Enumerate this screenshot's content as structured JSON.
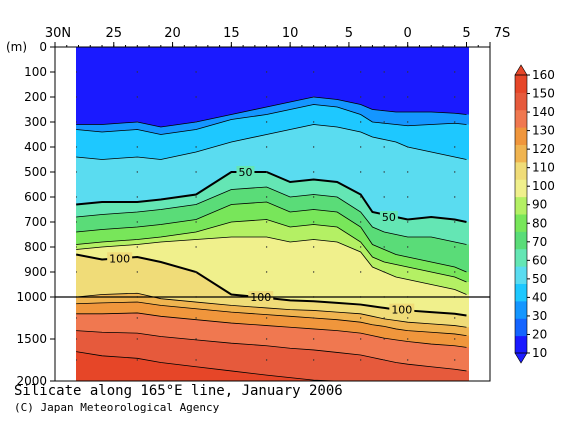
{
  "chart_data": {
    "type": "heatmap",
    "title": "Silicate along 165°E line, January 2006",
    "credit": "(C) Japan Meteorological Agency",
    "x_axis": {
      "ticks": [
        "30N",
        "25",
        "20",
        "15",
        "10",
        "5",
        "0",
        "5",
        "7S"
      ],
      "range_lat": [
        30,
        -7
      ]
    },
    "y_axis": {
      "unit": "(m)",
      "upper_ticks": [
        "0",
        "100",
        "200",
        "300",
        "400",
        "500",
        "600",
        "700",
        "800",
        "900",
        "1000"
      ],
      "lower_ticks": [
        "1500",
        "2000"
      ],
      "upper_range": [
        0,
        1000
      ],
      "lower_range": [
        1000,
        2000
      ]
    },
    "colorbar": {
      "levels": [
        10,
        20,
        30,
        40,
        50,
        60,
        70,
        80,
        90,
        100,
        110,
        120,
        130,
        140,
        150,
        160
      ],
      "labels": [
        "160",
        "150",
        "140",
        "130",
        "120",
        "110",
        "100",
        "90",
        "80",
        "70",
        "60",
        "50",
        "40",
        "30",
        "20",
        "10"
      ],
      "colors": [
        "#1a1aff",
        "#1464ff",
        "#1496ff",
        "#1ec8ff",
        "#5adcf0",
        "#64e6b4",
        "#5adc78",
        "#78e65a",
        "#b4f064",
        "#f0f08c",
        "#f0dc78",
        "#f0b450",
        "#f0963c",
        "#f07850",
        "#e65a3c",
        "#e64628"
      ]
    },
    "sample_latitudes": [
      28.2,
      26,
      23,
      21,
      18,
      15,
      12,
      10,
      8,
      6,
      4,
      3,
      2,
      1,
      0,
      -2,
      -4,
      -5
    ],
    "contours": [
      {
        "value": 20,
        "depths": [
          310,
          310,
          300,
          320,
          300,
          270,
          240,
          220,
          200,
          210,
          230,
          250,
          255,
          260,
          260,
          260,
          265,
          270
        ]
      },
      {
        "value": 30,
        "depths": [
          330,
          340,
          330,
          350,
          330,
          290,
          270,
          250,
          230,
          240,
          270,
          300,
          305,
          310,
          315,
          310,
          305,
          310
        ]
      },
      {
        "value": 40,
        "depths": [
          440,
          450,
          440,
          450,
          420,
          380,
          350,
          330,
          310,
          320,
          340,
          360,
          370,
          380,
          400,
          420,
          440,
          450
        ]
      },
      {
        "value": 50,
        "depths": [
          630,
          620,
          620,
          610,
          590,
          500,
          500,
          540,
          530,
          540,
          590,
          660,
          670,
          680,
          690,
          680,
          690,
          700
        ]
      },
      {
        "value": 60,
        "depths": [
          680,
          670,
          660,
          650,
          630,
          570,
          560,
          600,
          590,
          600,
          660,
          720,
          740,
          750,
          760,
          760,
          780,
          790
        ]
      },
      {
        "value": 70,
        "depths": [
          740,
          730,
          720,
          710,
          690,
          630,
          620,
          660,
          650,
          660,
          720,
          790,
          810,
          830,
          840,
          860,
          880,
          900
        ]
      },
      {
        "value": 80,
        "depths": [
          790,
          780,
          770,
          760,
          740,
          700,
          690,
          720,
          710,
          720,
          780,
          840,
          860,
          870,
          880,
          900,
          920,
          940
        ]
      },
      {
        "value": 90,
        "depths": [
          810,
          800,
          790,
          780,
          770,
          760,
          760,
          780,
          770,
          780,
          820,
          880,
          900,
          920,
          930,
          950,
          970,
          990
        ]
      },
      {
        "value": 100,
        "depths": [
          830,
          850,
          840,
          860,
          900,
          990,
          1010,
          1040,
          1050,
          1070,
          1090,
          1110,
          1130,
          1150,
          1160,
          1180,
          1200,
          1220
        ]
      },
      {
        "value": 110,
        "depths": [
          1000,
          990,
          985,
          1020,
          1060,
          1100,
          1130,
          1150,
          1160,
          1180,
          1200,
          1230,
          1260,
          1280,
          1300,
          1320,
          1340,
          1360
        ]
      },
      {
        "value": 120,
        "depths": [
          1080,
          1070,
          1060,
          1100,
          1140,
          1180,
          1210,
          1230,
          1250,
          1270,
          1300,
          1330,
          1350,
          1380,
          1400,
          1420,
          1440,
          1460
        ]
      },
      {
        "value": 130,
        "depths": [
          1200,
          1200,
          1190,
          1230,
          1270,
          1310,
          1340,
          1360,
          1380,
          1400,
          1430,
          1460,
          1490,
          1510,
          1530,
          1560,
          1580,
          1600
        ]
      },
      {
        "value": 140,
        "depths": [
          1400,
          1420,
          1430,
          1470,
          1510,
          1550,
          1580,
          1610,
          1630,
          1660,
          1690,
          1720,
          1750,
          1780,
          1800,
          1830,
          1860,
          1880
        ]
      },
      {
        "value": 150,
        "depths": [
          1650,
          1700,
          1730,
          1780,
          1830,
          1880,
          1930,
          1960,
          1990,
          2000,
          2000,
          2000,
          2000,
          2000,
          2000,
          2000,
          2000,
          2000
        ]
      }
    ],
    "bold_contours": [
      50,
      100
    ],
    "contour_labels": [
      {
        "text": "50",
        "lat": 13.8,
        "depth": 500
      },
      {
        "text": "50",
        "lat": 1.6,
        "depth": 680
      },
      {
        "text": "100",
        "lat": 24.5,
        "depth": 845
      },
      {
        "text": "100",
        "lat": 12.5,
        "depth": 1000
      },
      {
        "text": "100",
        "lat": 0.5,
        "depth": 1150
      }
    ]
  }
}
